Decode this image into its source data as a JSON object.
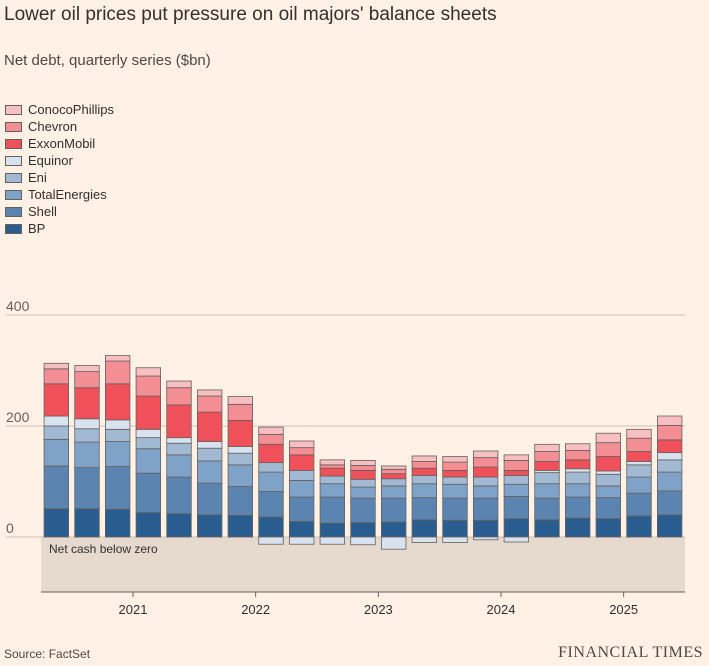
{
  "title": "Lower oil prices put pressure on oil majors' balance sheets",
  "subtitle": "Net debt, quarterly series ($bn)",
  "source": "Source: FactSet",
  "brand": "FINANCIAL TIMES",
  "chart_data": {
    "type": "bar",
    "stacked": true,
    "title": "Lower oil prices put pressure on oil majors' balance sheets",
    "subtitle": "Net debt, quarterly series ($bn)",
    "xlabel": "",
    "ylabel": "",
    "ylim": [
      -100,
      400
    ],
    "yticks": [
      0,
      200,
      400
    ],
    "ytick_labels": [
      "0",
      "200",
      "400"
    ],
    "xtick_labels": [
      {
        "label": "2021",
        "index": 2.5
      },
      {
        "label": "2022",
        "index": 6.5
      },
      {
        "label": "2023",
        "index": 10.5
      },
      {
        "label": "2024",
        "index": 14.5
      },
      {
        "label": "2025",
        "index": 18.5
      }
    ],
    "negative_area_label": "Net cash below zero",
    "grid": true,
    "legend_position": "top-left",
    "categories": [
      "2020 Q3",
      "2020 Q4",
      "2021 Q1",
      "2021 Q2",
      "2021 Q3",
      "2021 Q4",
      "2022 Q1",
      "2022 Q2",
      "2022 Q3",
      "2022 Q4",
      "2023 Q1",
      "2023 Q2",
      "2023 Q3",
      "2023 Q4",
      "2024 Q1",
      "2024 Q2",
      "2024 Q3",
      "2024 Q4",
      "2025 Q1",
      "2025 Q2",
      "2025 Q3"
    ],
    "series": [
      {
        "name": "BP",
        "color": "#2a5d8f",
        "values": [
          51,
          51,
          50,
          44,
          42,
          40,
          39,
          36,
          28,
          25,
          26,
          27,
          31,
          30,
          30,
          33,
          31,
          34,
          33,
          38,
          40
        ]
      },
      {
        "name": "Shell",
        "color": "#5b84b1",
        "values": [
          77,
          74,
          77,
          71,
          66,
          57,
          52,
          46,
          44,
          47,
          44,
          43,
          40,
          40,
          40,
          40,
          39,
          38,
          38,
          41,
          43
        ]
      },
      {
        "name": "TotalEnergies",
        "color": "#7fa3c8",
        "values": [
          48,
          46,
          45,
          44,
          40,
          40,
          39,
          35,
          30,
          24,
          20,
          22,
          25,
          25,
          22,
          22,
          26,
          24,
          21,
          29,
          34
        ]
      },
      {
        "name": "Eni",
        "color": "#a1b9d3",
        "values": [
          24,
          24,
          22,
          20,
          21,
          23,
          21,
          17,
          18,
          14,
          14,
          13,
          15,
          13,
          16,
          16,
          20,
          21,
          21,
          22,
          22
        ]
      },
      {
        "name": "Equinor",
        "color": "#d9e3ef",
        "values": [
          18,
          18,
          17,
          15,
          10,
          12,
          12,
          -13,
          -13,
          -13,
          -14,
          -22,
          -10,
          -10,
          -5,
          -9,
          4,
          6,
          6,
          6,
          13
        ]
      },
      {
        "name": "ExxonMobil",
        "color": "#f0505a",
        "values": [
          58,
          56,
          65,
          60,
          59,
          53,
          47,
          33,
          28,
          14,
          16,
          9,
          13,
          12,
          18,
          9,
          16,
          16,
          26,
          18,
          23
        ]
      },
      {
        "name": "Chevron",
        "color": "#f28e94",
        "values": [
          27,
          29,
          41,
          36,
          31,
          29,
          29,
          18,
          13,
          6,
          9,
          8,
          12,
          15,
          17,
          18,
          18,
          17,
          25,
          24,
          26
        ]
      },
      {
        "name": "ConocoPhillips",
        "color": "#f7bfc1",
        "values": [
          10,
          11,
          10,
          15,
          12,
          11,
          14,
          13,
          12,
          9,
          9,
          6,
          10,
          10,
          12,
          10,
          13,
          12,
          17,
          16,
          17
        ]
      }
    ]
  }
}
